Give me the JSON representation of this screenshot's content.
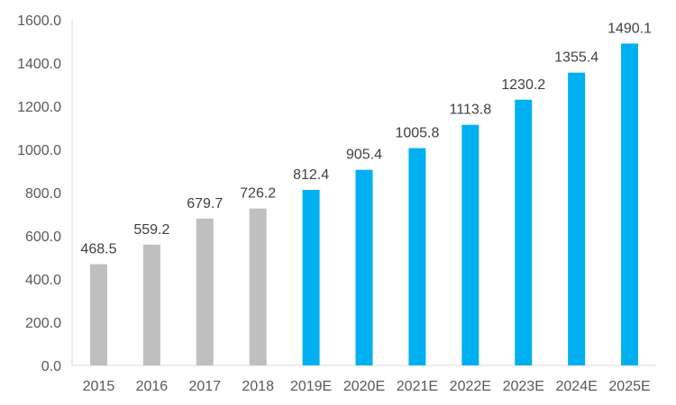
{
  "chart_data": {
    "type": "bar",
    "title": "",
    "xlabel": "",
    "ylabel": "",
    "categories": [
      "2015",
      "2016",
      "2017",
      "2018",
      "2019E",
      "2020E",
      "2021E",
      "2022E",
      "2023E",
      "2024E",
      "2025E"
    ],
    "values": [
      468.5,
      559.2,
      679.7,
      726.2,
      812.4,
      905.4,
      1005.8,
      1113.8,
      1230.2,
      1355.4,
      1490.1
    ],
    "value_labels": [
      "468.5",
      "559.2",
      "679.7",
      "726.2",
      "812.4",
      "905.4",
      "1005.8",
      "1113.8",
      "1230.2",
      "1355.4",
      "1490.1"
    ],
    "bar_kind": [
      "actual",
      "actual",
      "actual",
      "actual",
      "estimate",
      "estimate",
      "estimate",
      "estimate",
      "estimate",
      "estimate",
      "estimate"
    ],
    "colors": {
      "actual": "#BFBFBF",
      "estimate": "#00B0F0",
      "axis": "#D9D9D9"
    },
    "ylim": [
      0,
      1600
    ],
    "yticks": [
      0,
      200,
      400,
      600,
      800,
      1000,
      1200,
      1400,
      1600
    ],
    "ytick_labels": [
      "0.0",
      "200.0",
      "400.0",
      "600.0",
      "800.0",
      "1000.0",
      "1200.0",
      "1400.0",
      "1600.0"
    ],
    "grid": false,
    "legend": "none"
  }
}
